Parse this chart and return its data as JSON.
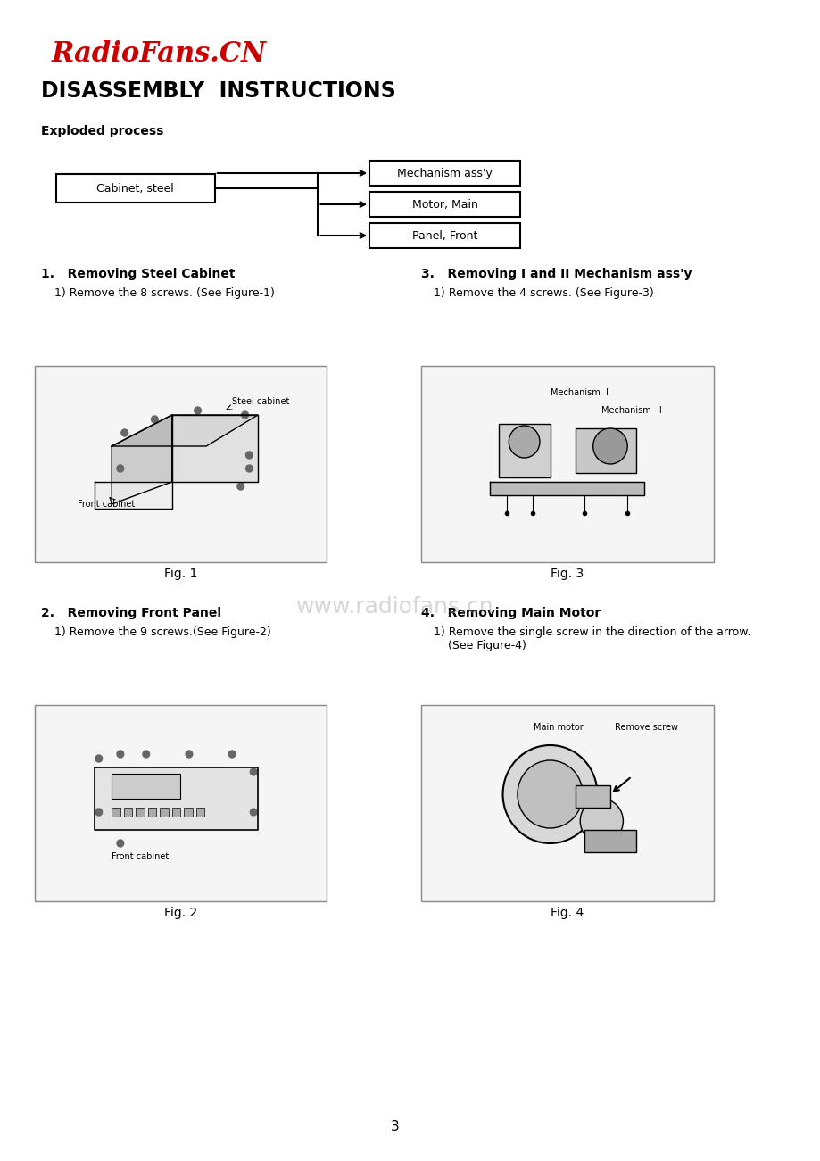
{
  "bg_color": "#ffffff",
  "watermark_color": "#cc0000",
  "watermark_text": "RadioFans.CN",
  "title": "DISASSEMBLY  INSTRUCTIONS",
  "subtitle": "Exploded process",
  "box_left_label": "Cabinet, steel",
  "box_right_labels": [
    "Mechanism ass'y",
    "Motor, Main",
    "Panel, Front"
  ],
  "section1_title": "1.   Removing Steel Cabinet",
  "section1_step": "1) Remove the 8 screws. (See Figure-1)",
  "section2_title": "2.   Removing Front Panel",
  "section2_step": "1) Remove the 9 screws.(See Figure-2)",
  "section3_title": "3.   Removing I and II Mechanism ass'y",
  "section3_step": "1) Remove the 4 screws. (See Figure-3)",
  "section4_title": "4.   Removing Main Motor",
  "section4_step": "1) Remove the single screw in the direction of the arrow.\n    (See Figure-4)",
  "fig1_caption": "Fig. 1",
  "fig2_caption": "Fig. 2",
  "fig3_caption": "Fig. 3",
  "fig4_caption": "Fig. 4",
  "page_number": "3"
}
